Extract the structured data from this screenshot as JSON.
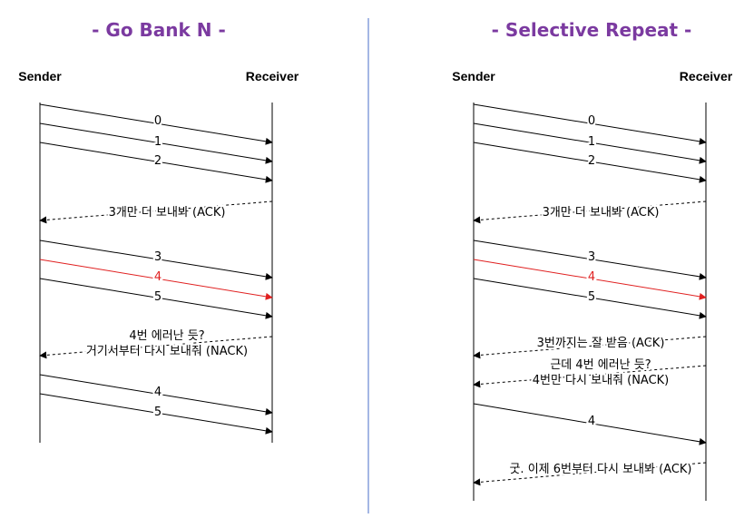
{
  "panels": [
    {
      "title": "- Go Bank N -",
      "sender": "Sender",
      "receiver": "Receiver",
      "messages": [
        {
          "label": "0",
          "dir": "forward",
          "style": "solid",
          "color": "#000000"
        },
        {
          "label": "1",
          "dir": "forward",
          "style": "solid",
          "color": "#000000"
        },
        {
          "label": "2",
          "dir": "forward",
          "style": "solid",
          "color": "#000000"
        },
        {
          "label": "3개만 더 보내봐 (ACK)",
          "dir": "back",
          "style": "dashed",
          "color": "#000000"
        },
        {
          "label": "3",
          "dir": "forward",
          "style": "solid",
          "color": "#000000"
        },
        {
          "label": "4",
          "dir": "forward",
          "style": "solid",
          "color": "#e02020"
        },
        {
          "label": "5",
          "dir": "forward",
          "style": "solid",
          "color": "#000000"
        },
        {
          "label": "4번 에러난 듯?",
          "label2": "거기서부터 다시 보내줘 (NACK)",
          "dir": "back",
          "style": "dashed",
          "color": "#000000"
        },
        {
          "label": "4",
          "dir": "forward",
          "style": "solid",
          "color": "#000000"
        },
        {
          "label": "5",
          "dir": "forward",
          "style": "solid",
          "color": "#000000"
        }
      ]
    },
    {
      "title": "- Selective Repeat -",
      "sender": "Sender",
      "receiver": "Receiver",
      "messages": [
        {
          "label": "0",
          "dir": "forward",
          "style": "solid",
          "color": "#000000"
        },
        {
          "label": "1",
          "dir": "forward",
          "style": "solid",
          "color": "#000000"
        },
        {
          "label": "2",
          "dir": "forward",
          "style": "solid",
          "color": "#000000"
        },
        {
          "label": "3개만 더 보내봐 (ACK)",
          "dir": "back",
          "style": "dashed",
          "color": "#000000"
        },
        {
          "label": "3",
          "dir": "forward",
          "style": "solid",
          "color": "#000000"
        },
        {
          "label": "4",
          "dir": "forward",
          "style": "solid",
          "color": "#e02020"
        },
        {
          "label": "5",
          "dir": "forward",
          "style": "solid",
          "color": "#000000"
        },
        {
          "label": "3번까지는 잘 받음 (ACK)",
          "dir": "back",
          "style": "dashed",
          "color": "#000000"
        },
        {
          "label": "근데 4번 에러난 듯?",
          "label2": "4번만 다시 보내줘 (NACK)",
          "dir": "back",
          "style": "dashed",
          "color": "#000000"
        },
        {
          "label": "4",
          "dir": "forward",
          "style": "solid",
          "color": "#000000"
        },
        {
          "label": "굿. 이제 6번부터 다시 보내봐 (ACK)",
          "dir": "back",
          "style": "dashed",
          "color": "#000000"
        }
      ]
    }
  ],
  "colors": {
    "title": "#7b3aa0",
    "divider": "#4a6fc9",
    "error": "#e02020"
  }
}
